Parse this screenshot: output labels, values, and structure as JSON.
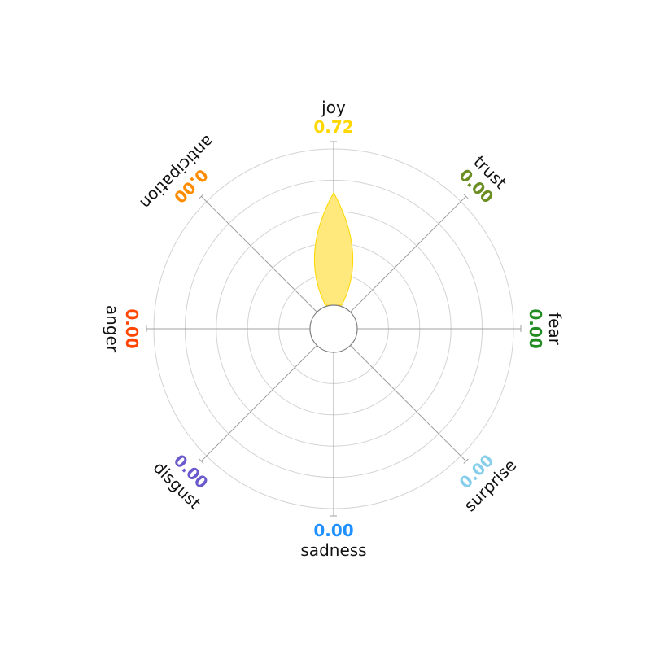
{
  "chart_data": {
    "type": "radar",
    "title": "",
    "axes": [
      {
        "label": "joy",
        "value": 0.72,
        "value_text": "0.72",
        "color": "#FFD700"
      },
      {
        "label": "trust",
        "value": 0.0,
        "value_text": "0.00",
        "color": "#6B8E23"
      },
      {
        "label": "fear",
        "value": 0.0,
        "value_text": "0.00",
        "color": "#228B22"
      },
      {
        "label": "surprise",
        "value": 0.0,
        "value_text": "0.00",
        "color": "#87CEEB"
      },
      {
        "label": "sadness",
        "value": 0.0,
        "value_text": "0.00",
        "color": "#1E90FF"
      },
      {
        "label": "disgust",
        "value": 0.0,
        "value_text": "0.00",
        "color": "#6A5ACD"
      },
      {
        "label": "anger",
        "value": 0.0,
        "value_text": "0.00",
        "color": "#FF4500"
      },
      {
        "label": "anticipation",
        "value": 0.0,
        "value_text": "0.00",
        "color": "#FF8C00"
      }
    ],
    "rlim": [
      0,
      1
    ],
    "grid": true,
    "fill_color": "#FFE87C",
    "edge_color": "#FFD700"
  }
}
